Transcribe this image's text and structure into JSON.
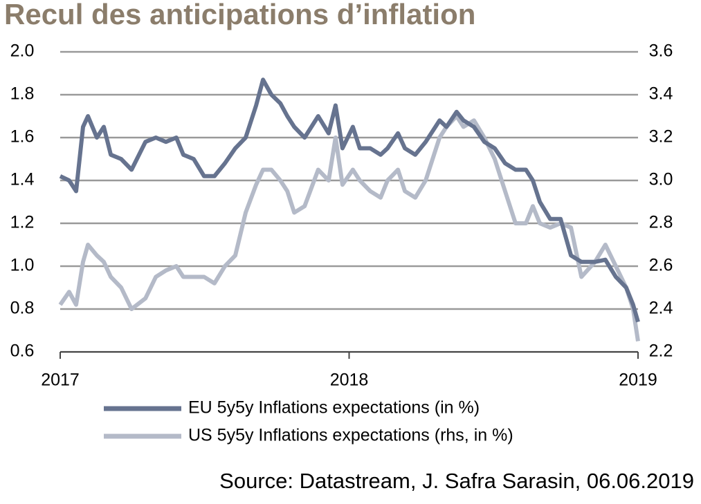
{
  "chart_data": {
    "type": "line",
    "title": "Recul des anticipations d’inflation",
    "source": "Source: Datastream, J. Safra Sarasin, 06.06.2019",
    "x": [
      2017.0,
      2017.031,
      2017.055,
      2017.079,
      2017.096,
      2017.127,
      2017.151,
      2017.175,
      2017.211,
      2017.247,
      2017.295,
      2017.331,
      2017.366,
      2017.402,
      2017.426,
      2017.462,
      2017.498,
      2017.534,
      2017.57,
      2017.606,
      2017.642,
      2017.678,
      2017.702,
      2017.731,
      2017.762,
      2017.786,
      2017.81,
      2017.846,
      2017.893,
      2017.929,
      2017.953,
      2017.977,
      2018.013,
      2018.037,
      2018.073,
      2018.109,
      2018.133,
      2018.169,
      2018.193,
      2018.229,
      2018.265,
      2018.313,
      2018.337,
      2018.372,
      2018.396,
      2018.432,
      2018.468,
      2018.504,
      2018.54,
      2018.576,
      2018.612,
      2018.636,
      2018.66,
      2018.696,
      2018.732,
      2018.768,
      2018.804,
      2018.851,
      2018.887,
      2018.923,
      2018.959,
      2018.983,
      2019.0
    ],
    "series": [
      {
        "name": "EU 5y5y Inflations expectations (in %)",
        "color": "#66738f",
        "values": [
          1.42,
          1.4,
          1.35,
          1.65,
          1.7,
          1.6,
          1.65,
          1.52,
          1.5,
          1.45,
          1.58,
          1.6,
          1.58,
          1.6,
          1.52,
          1.5,
          1.42,
          1.42,
          1.48,
          1.55,
          1.6,
          1.75,
          1.87,
          1.8,
          1.76,
          1.7,
          1.65,
          1.6,
          1.7,
          1.62,
          1.75,
          1.55,
          1.65,
          1.55,
          1.55,
          1.52,
          1.55,
          1.62,
          1.55,
          1.52,
          1.58,
          1.68,
          1.65,
          1.72,
          1.68,
          1.65,
          1.58,
          1.55,
          1.48,
          1.45,
          1.45,
          1.4,
          1.3,
          1.22,
          1.22,
          1.05,
          1.02,
          1.02,
          1.03,
          0.95,
          0.9,
          0.82,
          0.74
        ]
      },
      {
        "name": "US 5y5y Inflations expectations (rhs, in %)",
        "color": "#b4bac8",
        "axis": "y2",
        "values": [
          2.42,
          2.48,
          2.42,
          2.62,
          2.7,
          2.65,
          2.62,
          2.55,
          2.5,
          2.4,
          2.45,
          2.55,
          2.58,
          2.6,
          2.55,
          2.55,
          2.55,
          2.52,
          2.6,
          2.65,
          2.85,
          2.98,
          3.05,
          3.05,
          3.0,
          2.95,
          2.85,
          2.88,
          3.05,
          3.0,
          3.2,
          2.98,
          3.05,
          3.0,
          2.95,
          2.92,
          3.0,
          3.05,
          2.95,
          2.92,
          3.0,
          3.2,
          3.25,
          3.3,
          3.25,
          3.28,
          3.2,
          3.1,
          2.95,
          2.8,
          2.8,
          2.88,
          2.8,
          2.78,
          2.8,
          2.78,
          2.55,
          2.62,
          2.7,
          2.6,
          2.5,
          2.4,
          2.25
        ]
      }
    ],
    "xlim": [
      2017,
      2019
    ],
    "xticks": [
      2017,
      2018,
      2019
    ],
    "ylim": [
      0.6,
      2.0
    ],
    "yticks": [
      {
        "value": 0.6,
        "label": "0.6"
      },
      {
        "value": 0.8,
        "label": "0.8"
      },
      {
        "value": 1.0,
        "label": "1.0"
      },
      {
        "value": 1.2,
        "label": "1.2"
      },
      {
        "value": 1.4,
        "label": "1.4"
      },
      {
        "value": 1.6,
        "label": "1.6"
      },
      {
        "value": 1.8,
        "label": "1.8"
      },
      {
        "value": 2.0,
        "label": "2.0"
      }
    ],
    "y2lim": [
      2.2,
      3.6
    ],
    "y2ticks": [
      2.2,
      2.4,
      2.6,
      2.8,
      {
        "value": 3.0,
        "label": "3.0"
      },
      3.2,
      3.4,
      3.6
    ],
    "grid": true
  }
}
